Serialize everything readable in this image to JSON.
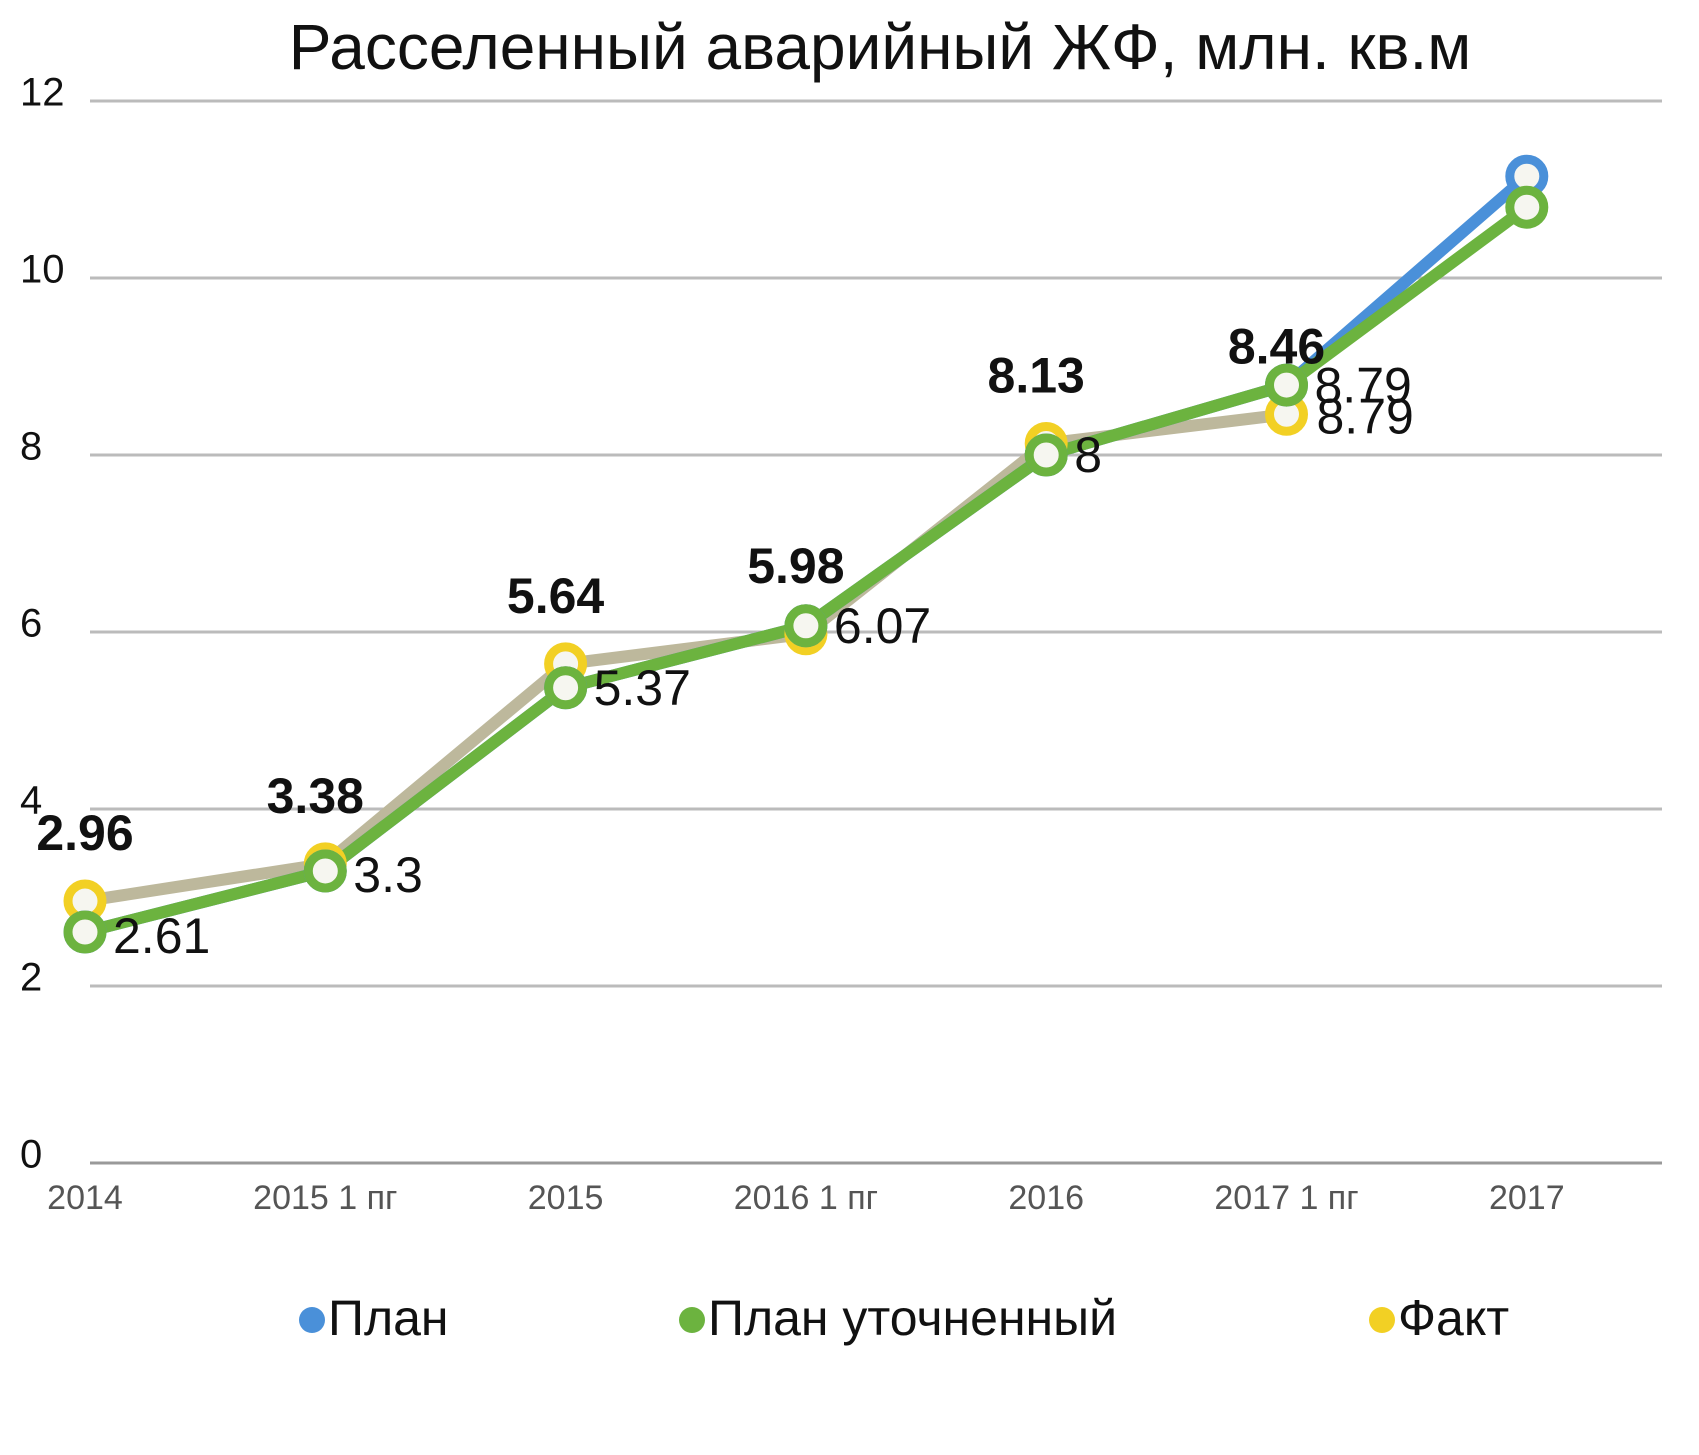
{
  "chart_data": {
    "type": "line",
    "title": "Расселенный аварийный ЖФ, млн. кв.м",
    "categories": [
      "2014",
      "2015 1 пг",
      "2015",
      "2016 1 пг",
      "2016",
      "2017 1 пг",
      "2017"
    ],
    "ylim": [
      0,
      12
    ],
    "yticks": [
      0,
      2,
      4,
      6,
      8,
      10,
      12
    ],
    "grid": true,
    "legend": "bottom",
    "series": [
      {
        "name": "План",
        "color": "#4a90d9",
        "values": [
          2.61,
          3.3,
          5.37,
          6.07,
          8,
          8.79,
          11.15
        ],
        "value_labels": [
          null,
          null,
          null,
          null,
          null,
          "8.79",
          null
        ]
      },
      {
        "name": "План уточненный",
        "color": "#6cb33f",
        "values": [
          2.61,
          3.3,
          5.37,
          6.07,
          8,
          8.79,
          10.8
        ],
        "value_labels": [
          "2.61",
          "3.3",
          "5.37",
          "6.07",
          "8",
          "8.79",
          null
        ]
      },
      {
        "name": "Факт",
        "color": "#f2d024",
        "line_color": "#bdb89c",
        "values": [
          2.96,
          3.38,
          5.64,
          5.98,
          8.13,
          8.46,
          null
        ],
        "value_labels": [
          "2.96",
          "3.38",
          "5.64",
          "5.98",
          "8.13",
          "8.46",
          null
        ]
      }
    ]
  }
}
